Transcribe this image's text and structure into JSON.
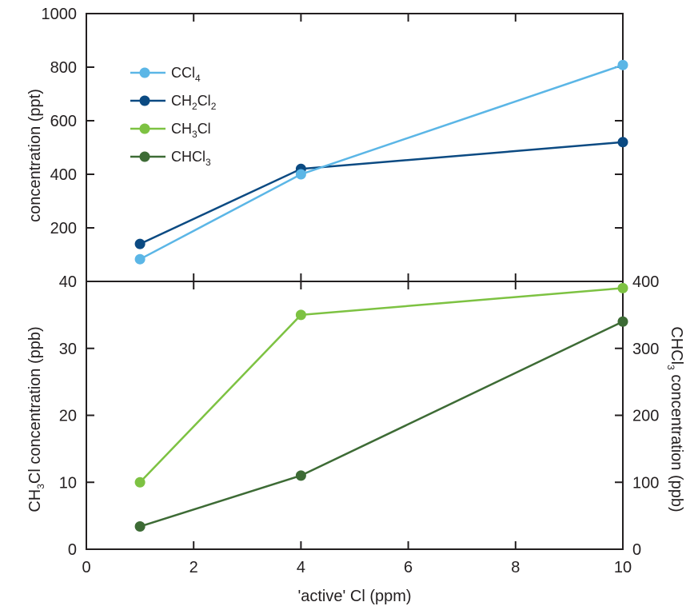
{
  "chart_data": [
    {
      "type": "line",
      "title": "",
      "xlabel": "",
      "ylabel": "concentration (ppt)",
      "xlim": [
        0,
        10
      ],
      "ylim": [
        0,
        1000
      ],
      "yticks": [
        200,
        400,
        600,
        800,
        1000
      ],
      "grid": false,
      "legend_position": "top-left",
      "series": [
        {
          "name": "CCl4",
          "name_parts": [
            "CCl",
            "4",
            ""
          ],
          "color": "#5bb6e6",
          "x": [
            1,
            4,
            10
          ],
          "values": [
            83,
            400,
            808
          ]
        },
        {
          "name": "CH2Cl2",
          "name_parts": [
            "CH",
            "2",
            "Cl",
            "2"
          ],
          "color": "#0b4a82",
          "x": [
            1,
            4,
            10
          ],
          "values": [
            140,
            420,
            520
          ]
        },
        {
          "name": "CH3Cl",
          "name_parts": [
            "CH",
            "3",
            "Cl",
            ""
          ],
          "color": "#7dc242",
          "x": [],
          "values": []
        },
        {
          "name": "CHCl3",
          "name_parts": [
            "CHCl",
            "3",
            "",
            ""
          ],
          "color": "#3d6b35",
          "x": [],
          "values": []
        }
      ]
    },
    {
      "type": "line",
      "title": "",
      "xlabel": "'active' Cl (ppm)",
      "ylabel_parts": [
        "CH",
        "3",
        "Cl concentration (ppb)"
      ],
      "y2label_parts": [
        "CHCl",
        "3",
        " concentration (ppb)"
      ],
      "xlim": [
        0,
        10
      ],
      "xticks": [
        0,
        2,
        4,
        6,
        8,
        10
      ],
      "ylim": [
        0,
        40
      ],
      "yticks": [
        0,
        10,
        20,
        30,
        40
      ],
      "y2lim": [
        0,
        400
      ],
      "y2ticks": [
        0,
        100,
        200,
        300,
        400
      ],
      "grid": false,
      "series": [
        {
          "name": "CH3Cl",
          "axis": "left",
          "color": "#7dc242",
          "x": [
            1,
            4,
            10
          ],
          "values": [
            10,
            35,
            39
          ]
        },
        {
          "name": "CHCl3",
          "axis": "right",
          "color": "#3d6b35",
          "x": [
            1,
            4,
            10
          ],
          "values": [
            34,
            110,
            340
          ]
        }
      ]
    }
  ]
}
